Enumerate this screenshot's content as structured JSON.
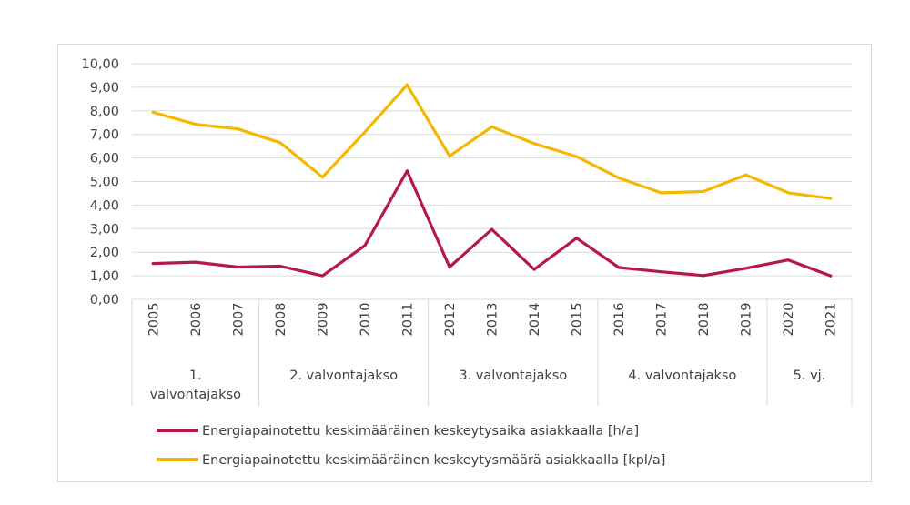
{
  "chart_data": {
    "type": "line",
    "x": [
      "2005",
      "2006",
      "2007",
      "2008",
      "2009",
      "2010",
      "2011",
      "2012",
      "2013",
      "2014",
      "2015",
      "2016",
      "2017",
      "2018",
      "2019",
      "2020",
      "2021"
    ],
    "groups": [
      {
        "lines": [
          "1.",
          "valvontajakso"
        ],
        "start": 0,
        "end": 2
      },
      {
        "lines": [
          "2. valvontajakso"
        ],
        "start": 3,
        "end": 6
      },
      {
        "lines": [
          "3. valvontajakso"
        ],
        "start": 7,
        "end": 10
      },
      {
        "lines": [
          "4. valvontajakso"
        ],
        "start": 11,
        "end": 14
      },
      {
        "lines": [
          "5. vj."
        ],
        "start": 15,
        "end": 16
      }
    ],
    "series": [
      {
        "name": "Energiapainotettu keskimääräinen keskeytysaika asiakkaalla [h/a]",
        "color": "#b5174e",
        "values": [
          1.52,
          1.58,
          1.37,
          1.41,
          1.0,
          2.28,
          5.45,
          1.37,
          2.97,
          1.27,
          2.6,
          1.35,
          1.17,
          1.01,
          1.32,
          1.67,
          1.0
        ]
      },
      {
        "name": "Energiapainotettu keskimääräinen keskeytysmäärä asiakkaalla [kpl/a]",
        "color": "#f5b800",
        "values": [
          7.94,
          7.43,
          7.23,
          6.65,
          5.19,
          7.1,
          9.1,
          6.08,
          7.32,
          6.61,
          6.06,
          5.15,
          4.52,
          4.58,
          5.28,
          4.52,
          4.28
        ]
      }
    ],
    "yticks": [
      "0,00",
      "1,00",
      "2,00",
      "3,00",
      "4,00",
      "5,00",
      "6,00",
      "7,00",
      "8,00",
      "9,00",
      "10,00"
    ],
    "ylim": [
      0,
      10
    ],
    "grid": true,
    "legend_position": "bottom"
  }
}
